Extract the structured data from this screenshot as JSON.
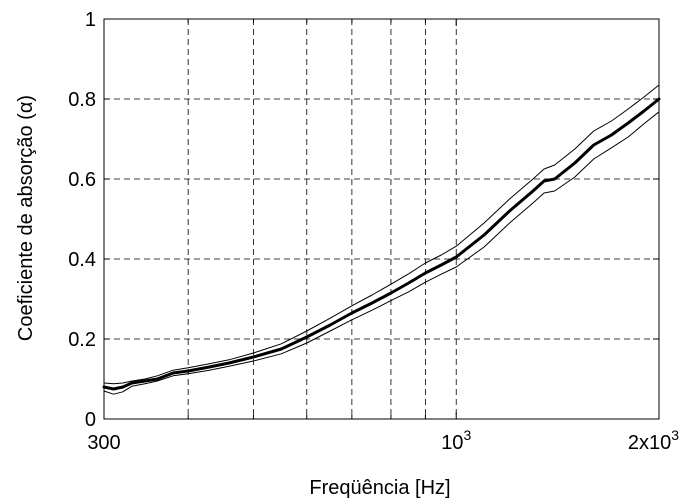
{
  "chart_data": {
    "type": "line",
    "xlabel": "Freqüência [Hz]",
    "ylabel": "Coeficiente de absorção (α)",
    "xscale": "log",
    "xlim": [
      300,
      2000
    ],
    "ylim": [
      0,
      1
    ],
    "grid": true,
    "x_ticks": [
      {
        "value": 300,
        "label": "300"
      },
      {
        "value": 1000,
        "label": "10",
        "exp": "3"
      },
      {
        "value": 2000,
        "label": "2x10",
        "exp": "3"
      }
    ],
    "x_minor_grid": [
      400,
      500,
      600,
      700,
      800,
      900
    ],
    "y_ticks": [
      {
        "value": 0,
        "label": "0"
      },
      {
        "value": 0.2,
        "label": "0.2"
      },
      {
        "value": 0.4,
        "label": "0.4"
      },
      {
        "value": 0.6,
        "label": "0.6"
      },
      {
        "value": 0.8,
        "label": "0.8"
      },
      {
        "value": 1,
        "label": "1"
      }
    ],
    "x": [
      300,
      310,
      320,
      330,
      345,
      360,
      380,
      400,
      430,
      460,
      500,
      550,
      600,
      650,
      700,
      750,
      800,
      850,
      900,
      950,
      1000,
      1100,
      1200,
      1300,
      1350,
      1400,
      1500,
      1600,
      1700,
      1800,
      1900,
      2000
    ],
    "series": [
      {
        "role": "mean",
        "color": "#000000",
        "width": 3,
        "values": [
          0.08,
          0.075,
          0.08,
          0.09,
          0.095,
          0.1,
          0.115,
          0.12,
          0.13,
          0.14,
          0.155,
          0.175,
          0.205,
          0.235,
          0.265,
          0.29,
          0.315,
          0.34,
          0.365,
          0.385,
          0.405,
          0.46,
          0.52,
          0.57,
          0.595,
          0.6,
          0.64,
          0.685,
          0.71,
          0.74,
          0.77,
          0.8
        ]
      },
      {
        "role": "upper",
        "color": "#000000",
        "width": 1,
        "values": [
          0.09,
          0.088,
          0.09,
          0.095,
          0.1,
          0.108,
          0.122,
          0.128,
          0.138,
          0.148,
          0.165,
          0.188,
          0.22,
          0.252,
          0.283,
          0.31,
          0.337,
          0.363,
          0.39,
          0.41,
          0.432,
          0.49,
          0.55,
          0.6,
          0.625,
          0.635,
          0.675,
          0.72,
          0.745,
          0.775,
          0.805,
          0.835
        ]
      },
      {
        "role": "lower",
        "color": "#000000",
        "width": 1,
        "values": [
          0.07,
          0.062,
          0.068,
          0.082,
          0.088,
          0.095,
          0.108,
          0.113,
          0.122,
          0.132,
          0.145,
          0.163,
          0.19,
          0.22,
          0.248,
          0.272,
          0.296,
          0.318,
          0.342,
          0.362,
          0.38,
          0.43,
          0.49,
          0.54,
          0.565,
          0.57,
          0.605,
          0.65,
          0.678,
          0.705,
          0.738,
          0.768
        ]
      }
    ]
  }
}
